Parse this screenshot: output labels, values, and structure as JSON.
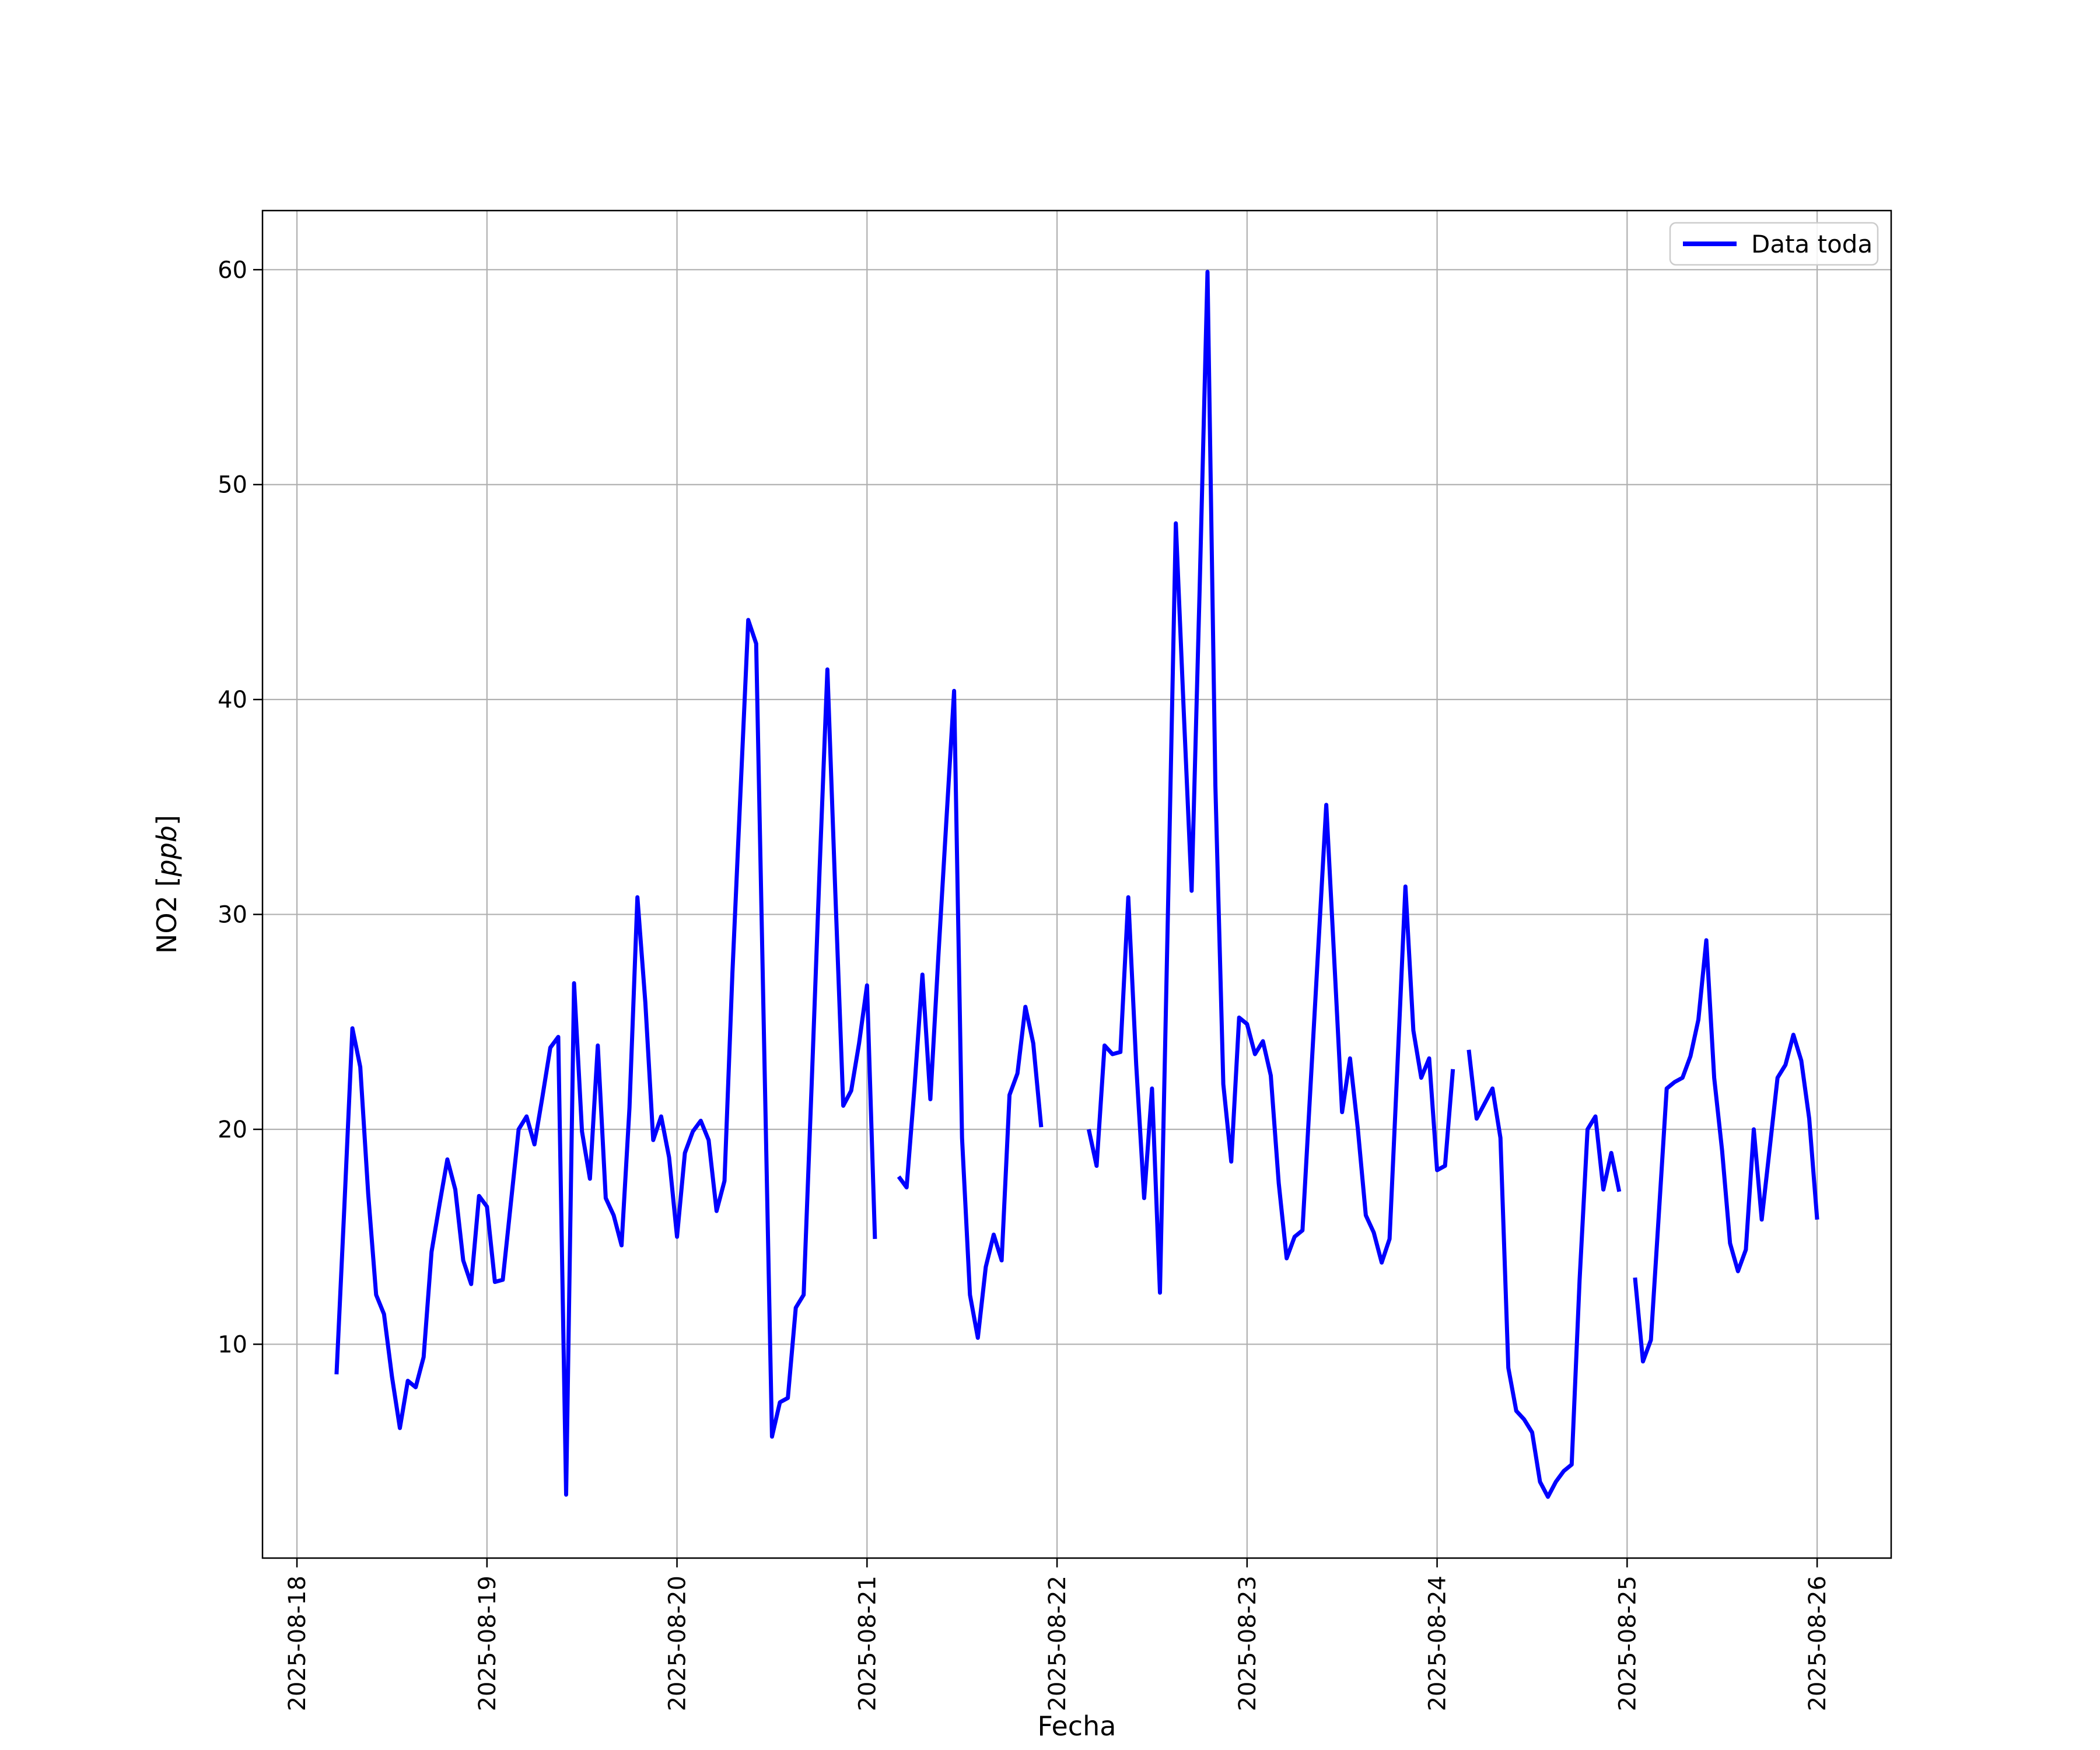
{
  "chart_data": {
    "type": "line",
    "title": "",
    "xlabel": "Fecha",
    "ylabel": "NO2 [ppb]",
    "ylabel_parts": {
      "prefix": "NO2 [",
      "math": "ppb",
      "suffix": "]"
    },
    "grid": true,
    "grid_color": "#b0b0b0",
    "background_color": "#ffffff",
    "spine_color": "#000000",
    "legend_position": "upper right",
    "legend": [
      {
        "label": "Data toda",
        "color": "#0000ff"
      }
    ],
    "x_axis": {
      "tick_hours": [
        0,
        24,
        48,
        72,
        96,
        120,
        144,
        168,
        192
      ],
      "tick_labels": [
        "2025-08-18",
        "2025-08-19",
        "2025-08-20",
        "2025-08-21",
        "2025-08-22",
        "2025-08-23",
        "2025-08-24",
        "2025-08-25",
        "2025-08-26"
      ],
      "tick_label_rotation": 90,
      "xlim_hours": [
        -4.35,
        201.35
      ]
    },
    "y_axis": {
      "ticks": [
        10,
        20,
        30,
        40,
        50,
        60
      ],
      "ylim": [
        0.05,
        62.75
      ]
    },
    "series": [
      {
        "name": "Data toda",
        "color": "#0000ff",
        "start_hour": 5,
        "step_hours": 1,
        "values": [
          8.6,
          16.5,
          24.7,
          22.9,
          17,
          12.3,
          11.4,
          8.5,
          6.1,
          8.3,
          8,
          9.4,
          14.3,
          16.5,
          18.6,
          17.2,
          13.9,
          12.8,
          16.9,
          16.4,
          12.9,
          13,
          16.5,
          20,
          20.6,
          19.3,
          21.5,
          23.8,
          24.3,
          3,
          26.8,
          19.9,
          17.7,
          23.9,
          16.8,
          16,
          14.6,
          21,
          30.8,
          25.9,
          19.5,
          20.6,
          18.7,
          15,
          18.9,
          19.9,
          20.4,
          19.5,
          16.2,
          17.6,
          27.3,
          35.5,
          43.7,
          42.6,
          24,
          5.7,
          7.3,
          7.5,
          11.7,
          12.3,
          22,
          32,
          41.4,
          31,
          21.1,
          21.8,
          24,
          26.7,
          14.9,
          null,
          null,
          17.8,
          17.3,
          22,
          27.2,
          21.4,
          28,
          34.2,
          40.4,
          19.6,
          12.3,
          10.3,
          13.6,
          15.1,
          13.9,
          21.6,
          22.6,
          25.7,
          24,
          20.1,
          null,
          null,
          null,
          null,
          null,
          20,
          18.3,
          23.9,
          23.5,
          23.6,
          30.8,
          23,
          16.8,
          21.9,
          12.4,
          30,
          48.2,
          39.5,
          31.1,
          45,
          59.9,
          36,
          22.1,
          18.5,
          25.2,
          24.9,
          23.5,
          24.1,
          22.5,
          17.5,
          14,
          15,
          15.3,
          21.9,
          28.5,
          35.1,
          28,
          20.8,
          23.3,
          20,
          16,
          15.2,
          13.8,
          14.9,
          23,
          31.3,
          24.6,
          22.4,
          23.3,
          18.1,
          18.3,
          22.8,
          null,
          23.7,
          20.5,
          21.2,
          21.9,
          19.6,
          8.9,
          6.9,
          6.5,
          5.9,
          3.6,
          2.9,
          3.6,
          4.1,
          4.4,
          13,
          20,
          20.6,
          17.2,
          18.9,
          17.1,
          null,
          13.1,
          9.2,
          10.2,
          16,
          21.9,
          22.2,
          22.4,
          23.4,
          25.1,
          28.8,
          22.4,
          19,
          14.7,
          13.4,
          14.4,
          20,
          15.8,
          19.1,
          22.4,
          23,
          24.4,
          23.2,
          20.5,
          15.8
        ]
      }
    ]
  }
}
